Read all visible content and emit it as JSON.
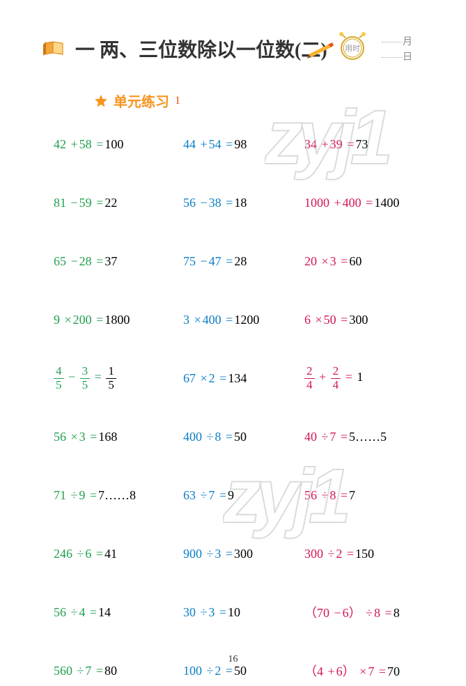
{
  "header": {
    "chapter_title": "一 两、三位数除以一位数(二)",
    "timer_label": "用时",
    "month_label": "月",
    "day_label": "日"
  },
  "subtitle": {
    "text": "单元练习",
    "num": "1"
  },
  "problems": [
    [
      {
        "lhs": "42",
        "op": "+",
        "rhs": "58",
        "eq": "=",
        "ans": "100",
        "color": "green"
      },
      {
        "lhs": "44",
        "op": "+",
        "rhs": "54",
        "eq": "=",
        "ans": "98",
        "color": "blue"
      },
      {
        "lhs": "34",
        "op": "+",
        "rhs": "39",
        "eq": "=",
        "ans": "73",
        "color": "magenta"
      }
    ],
    [
      {
        "lhs": "81",
        "op": "−",
        "rhs": "59",
        "eq": "=",
        "ans": "22",
        "color": "green"
      },
      {
        "lhs": "56",
        "op": "−",
        "rhs": "38",
        "eq": "=",
        "ans": "18",
        "color": "blue"
      },
      {
        "lhs": "1000",
        "op": "+",
        "rhs": "400",
        "eq": "=",
        "ans": "1400",
        "color": "magenta"
      }
    ],
    [
      {
        "lhs": "65",
        "op": "−",
        "rhs": "28",
        "eq": "=",
        "ans": "37",
        "color": "green"
      },
      {
        "lhs": "75",
        "op": "−",
        "rhs": "47",
        "eq": "=",
        "ans": "28",
        "color": "blue"
      },
      {
        "lhs": "20",
        "op": "×",
        "rhs": "3",
        "eq": "=",
        "ans": "60",
        "color": "magenta"
      }
    ],
    [
      {
        "lhs": "9",
        "op": "×",
        "rhs": "200",
        "eq": "=",
        "ans": "1800",
        "color": "green"
      },
      {
        "lhs": "3",
        "op": "×",
        "rhs": "400",
        "eq": "=",
        "ans": "1200",
        "color": "blue"
      },
      {
        "lhs": "6",
        "op": "×",
        "rhs": "50",
        "eq": "=",
        "ans": "300",
        "color": "magenta"
      }
    ],
    [
      {
        "type": "frac",
        "lnum": "4",
        "lden": "5",
        "op": "−",
        "rnum": "3",
        "rden": "5",
        "eq": "=",
        "anum": "1",
        "aden": "5",
        "color": "green"
      },
      {
        "lhs": "67",
        "op": "×",
        "rhs": "2",
        "eq": "=",
        "ans": "134",
        "color": "blue"
      },
      {
        "type": "frac",
        "lnum": "2",
        "lden": "4",
        "op": "+",
        "rnum": "2",
        "rden": "4",
        "eq": "=",
        "ans": "1",
        "color": "magenta"
      }
    ],
    [
      {
        "lhs": "56",
        "op": "×",
        "rhs": "3",
        "eq": "=",
        "ans": "168",
        "color": "green"
      },
      {
        "lhs": "400",
        "op": "÷",
        "rhs": "8",
        "eq": "=",
        "ans": "50",
        "color": "blue"
      },
      {
        "lhs": "40",
        "op": "÷",
        "rhs": "7",
        "eq": "=",
        "ans": "5……5",
        "color": "magenta"
      }
    ],
    [
      {
        "lhs": "71",
        "op": "÷",
        "rhs": "9",
        "eq": "=",
        "ans": "7……8",
        "color": "green"
      },
      {
        "lhs": "63",
        "op": "÷",
        "rhs": "7",
        "eq": "=",
        "ans": "9",
        "color": "blue"
      },
      {
        "lhs": "56",
        "op": "÷",
        "rhs": "8",
        "eq": "=",
        "ans": "7",
        "color": "magenta"
      }
    ],
    [
      {
        "lhs": "246",
        "op": "÷",
        "rhs": "6",
        "eq": "=",
        "ans": "41",
        "color": "green"
      },
      {
        "lhs": "900",
        "op": "÷",
        "rhs": "3",
        "eq": "=",
        "ans": "300",
        "color": "blue"
      },
      {
        "lhs": "300",
        "op": "÷",
        "rhs": "2",
        "eq": "=",
        "ans": "150",
        "color": "magenta"
      }
    ],
    [
      {
        "lhs": "56",
        "op": "÷",
        "rhs": "4",
        "eq": "=",
        "ans": "14",
        "color": "green"
      },
      {
        "lhs": "30",
        "op": "÷",
        "rhs": "3",
        "eq": "=",
        "ans": "10",
        "color": "blue"
      },
      {
        "lhs": "（70",
        "op": "−",
        "rhs": "6）",
        "op2": "÷",
        "rhs2": "8",
        "eq": "=",
        "ans": "8",
        "color": "magenta"
      }
    ],
    [
      {
        "lhs": "560",
        "op": "÷",
        "rhs": "7",
        "eq": "=",
        "ans": "80",
        "color": "green"
      },
      {
        "lhs": "100",
        "op": "÷",
        "rhs": "2",
        "eq": "=",
        "ans": "50",
        "color": "blue"
      },
      {
        "lhs": "（4",
        "op": "+",
        "rhs": "6）",
        "op2": "×",
        "rhs2": "7",
        "eq": "=",
        "ans": "70",
        "color": "magenta"
      }
    ]
  ],
  "page_number": "16",
  "watermark_text": "zyj1",
  "colors": {
    "green": "#1fa04f",
    "blue": "#0b7ec4",
    "magenta": "#d4145a",
    "orange": "#f7941e",
    "answer": "#000000"
  }
}
